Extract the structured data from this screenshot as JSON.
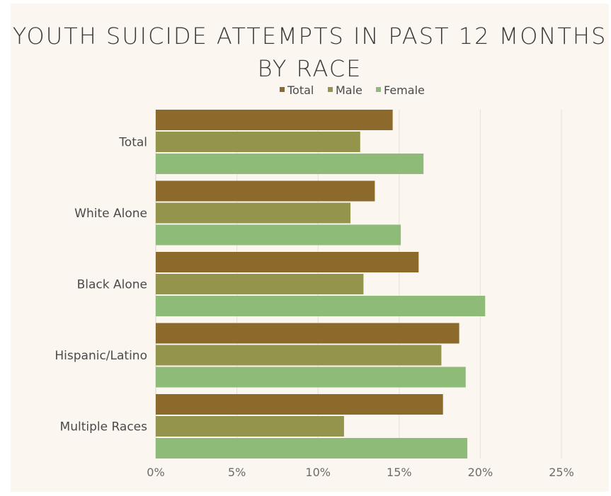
{
  "chart_data": {
    "type": "bar",
    "orientation": "horizontal",
    "title": "YOUTH SUICIDE ATTEMPTS IN PAST 12 MONTHS BY RACE",
    "categories": [
      "Total",
      "White Alone",
      "Black Alone",
      "Hispanic/Latino",
      "Multiple Races"
    ],
    "series": [
      {
        "name": "Total",
        "color": "#8c6a2b",
        "values": [
          14.6,
          13.5,
          16.2,
          18.7,
          17.7
        ]
      },
      {
        "name": "Male",
        "color": "#94944c",
        "values": [
          12.6,
          12.0,
          12.8,
          17.6,
          11.6
        ]
      },
      {
        "name": "Female",
        "color": "#8fbb78",
        "values": [
          16.5,
          15.1,
          20.3,
          19.1,
          19.2
        ]
      }
    ],
    "xlim": [
      0,
      25
    ],
    "xticks": [
      "0%",
      "5%",
      "10%",
      "15%",
      "20%",
      "25%"
    ],
    "xtick_values": [
      0,
      5,
      10,
      15,
      20,
      25
    ],
    "legend_position": "top",
    "grid": "vertical"
  }
}
